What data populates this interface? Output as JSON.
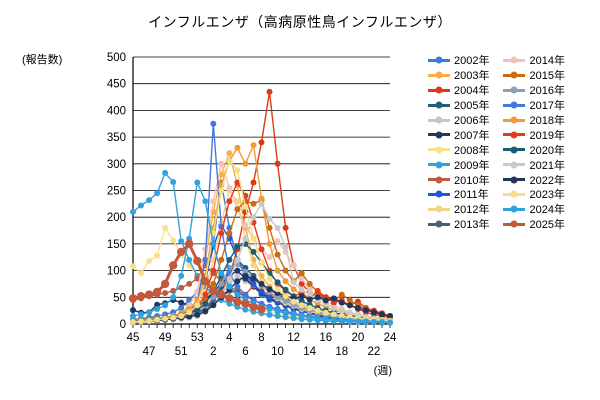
{
  "chart_data": {
    "type": "line",
    "title": "インフルエンザ（高病原性鳥インフルエンザ）",
    "ylabel": "(報告数)",
    "xlabel": "(週)",
    "ylim": [
      0,
      500
    ],
    "ytick_step": 50,
    "grid": true,
    "legend_position": "right",
    "x_weeks": [
      45,
      46,
      47,
      48,
      49,
      50,
      51,
      52,
      53,
      1,
      2,
      3,
      4,
      5,
      6,
      7,
      8,
      9,
      10,
      11,
      12,
      13,
      14,
      15,
      16,
      17,
      18,
      19,
      20,
      21,
      22,
      23,
      24
    ],
    "xtick_labels_top": [
      45,
      49,
      53,
      4,
      8,
      12,
      16,
      20,
      24
    ],
    "xtick_labels_bottom": [
      47,
      51,
      2,
      6,
      10,
      14,
      18,
      22
    ],
    "series": [
      {
        "name": "2002年",
        "color": "#3B7DD8",
        "values": [
          8,
          10,
          12,
          15,
          18,
          22,
          30,
          45,
          60,
          90,
          150,
          265,
          180,
          120,
          90,
          70,
          55,
          45,
          40,
          35,
          30,
          25,
          20,
          15,
          12,
          10,
          8,
          6,
          5,
          5,
          4,
          3,
          3
        ]
      },
      {
        "name": "2003年",
        "color": "#F8AE4A",
        "values": [
          5,
          6,
          8,
          10,
          12,
          15,
          20,
          30,
          45,
          120,
          210,
          280,
          320,
          260,
          180,
          120,
          90,
          70,
          55,
          45,
          38,
          32,
          28,
          24,
          20,
          17,
          14,
          12,
          10,
          8,
          7,
          6,
          5
        ]
      },
      {
        "name": "2004年",
        "color": "#DC3A14",
        "values": [
          3,
          4,
          5,
          6,
          8,
          10,
          12,
          15,
          20,
          30,
          45,
          60,
          90,
          140,
          210,
          265,
          340,
          435,
          300,
          180,
          110,
          75,
          60,
          55,
          50,
          45,
          40,
          35,
          42,
          30,
          25,
          20,
          15
        ]
      },
      {
        "name": "2005年",
        "color": "#20607C",
        "values": [
          5,
          6,
          7,
          8,
          10,
          12,
          14,
          17,
          20,
          28,
          45,
          70,
          95,
          120,
          105,
          90,
          75,
          65,
          55,
          48,
          42,
          36,
          30,
          26,
          22,
          19,
          16,
          14,
          12,
          10,
          9,
          8,
          7
        ]
      },
      {
        "name": "2006年",
        "color": "#C6C6C6",
        "values": [
          6,
          7,
          8,
          9,
          10,
          12,
          14,
          16,
          18,
          24,
          35,
          55,
          75,
          90,
          80,
          70,
          60,
          50,
          42,
          36,
          30,
          25,
          21,
          18,
          15,
          13,
          11,
          9,
          8,
          7,
          6,
          5,
          4
        ]
      },
      {
        "name": "2007年",
        "color": "#1F3864",
        "values": [
          26,
          21,
          22,
          36,
          39,
          45,
          40,
          35,
          30,
          45,
          60,
          75,
          90,
          100,
          85,
          70,
          58,
          48,
          40,
          34,
          28,
          24,
          20,
          17,
          14,
          12,
          10,
          9,
          8,
          7,
          6,
          5,
          4
        ]
      },
      {
        "name": "2008年",
        "color": "#FAE08C",
        "values": [
          108,
          95,
          118,
          128,
          180,
          157,
          130,
          110,
          90,
          75,
          65,
          55,
          48,
          42,
          36,
          30,
          26,
          22,
          19,
          16,
          14,
          12,
          10,
          9,
          8,
          7,
          6,
          5,
          4,
          4,
          3,
          3,
          2
        ]
      },
      {
        "name": "2009年",
        "color": "#33A2DC",
        "values": [
          210,
          222,
          232,
          245,
          283,
          266,
          155,
          120,
          90,
          70,
          55,
          45,
          38,
          32,
          27,
          23,
          20,
          17,
          15,
          13,
          11,
          9,
          8,
          7,
          6,
          5,
          5,
          4,
          4,
          3,
          3,
          2,
          2
        ]
      },
      {
        "name": "2010年",
        "color": "#BF5B41",
        "values": [
          45,
          48,
          52,
          55,
          58,
          62,
          68,
          75,
          85,
          110,
          95,
          80,
          70,
          62,
          55,
          72,
          62,
          55,
          48,
          42,
          36,
          30,
          26,
          22,
          19,
          16,
          14,
          12,
          10,
          9,
          8,
          7,
          6
        ]
      },
      {
        "name": "2011年",
        "color": "#2158D8",
        "values": [
          6,
          7,
          8,
          10,
          12,
          14,
          18,
          24,
          35,
          80,
          145,
          185,
          160,
          120,
          95,
          75,
          60,
          50,
          42,
          35,
          30,
          25,
          21,
          18,
          15,
          13,
          11,
          9,
          8,
          7,
          6,
          5,
          4
        ]
      },
      {
        "name": "2012年",
        "color": "#F5D488",
        "values": [
          4,
          5,
          6,
          8,
          10,
          12,
          15,
          20,
          30,
          60,
          120,
          190,
          250,
          230,
          160,
          110,
          80,
          60,
          48,
          40,
          34,
          28,
          24,
          20,
          17,
          14,
          12,
          10,
          8,
          7,
          6,
          5,
          4
        ]
      },
      {
        "name": "2013年",
        "color": "#4D5E77",
        "values": [
          8,
          9,
          10,
          11,
          12,
          14,
          16,
          18,
          21,
          28,
          38,
          50,
          62,
          58,
          52,
          45,
          38,
          32,
          27,
          23,
          19,
          16,
          14,
          12,
          10,
          9,
          8,
          7,
          6,
          5,
          4,
          4,
          3
        ]
      },
      {
        "name": "2014年",
        "color": "#F2C3B4",
        "values": [
          5,
          6,
          8,
          10,
          12,
          15,
          20,
          35,
          60,
          140,
          230,
          300,
          255,
          215,
          185,
          160,
          140,
          125,
          155,
          135,
          110,
          85,
          65,
          50,
          42,
          35,
          28,
          22,
          18,
          15,
          12,
          10,
          8
        ]
      },
      {
        "name": "2015年",
        "color": "#CB6C15",
        "values": [
          4,
          5,
          6,
          8,
          10,
          12,
          15,
          20,
          28,
          45,
          75,
          120,
          170,
          215,
          230,
          225,
          232,
          180,
          130,
          100,
          80,
          95,
          75,
          60,
          50,
          42,
          55,
          45,
          35,
          28,
          22,
          18,
          15
        ]
      },
      {
        "name": "2016年",
        "color": "#8D9DB8",
        "values": [
          7,
          8,
          9,
          10,
          12,
          14,
          16,
          19,
          23,
          32,
          50,
          75,
          105,
          112,
          98,
          85,
          72,
          60,
          50,
          43,
          36,
          30,
          26,
          22,
          18,
          15,
          13,
          11,
          9,
          8,
          7,
          6,
          5
        ]
      },
      {
        "name": "2017年",
        "color": "#4478E0",
        "values": [
          4,
          5,
          6,
          8,
          10,
          12,
          18,
          25,
          40,
          120,
          375,
          182,
          95,
          70,
          55,
          45,
          38,
          32,
          28,
          24,
          20,
          17,
          14,
          12,
          10,
          9,
          8,
          7,
          6,
          5,
          4,
          4,
          3
        ]
      },
      {
        "name": "2018年",
        "color": "#F19A37",
        "values": [
          5,
          6,
          8,
          10,
          12,
          15,
          20,
          28,
          40,
          90,
          180,
          260,
          305,
          330,
          300,
          335,
          235,
          150,
          100,
          80,
          65,
          55,
          45,
          38,
          32,
          26,
          22,
          18,
          15,
          12,
          10,
          8,
          7
        ]
      },
      {
        "name": "2019年",
        "color": "#E23B20",
        "values": [
          4,
          5,
          6,
          8,
          10,
          12,
          15,
          20,
          30,
          55,
          100,
          170,
          230,
          265,
          240,
          190,
          140,
          100,
          75,
          62,
          52,
          58,
          46,
          62,
          50,
          40,
          44,
          35,
          28,
          22,
          18,
          15,
          12
        ]
      },
      {
        "name": "2020年",
        "color": "#1B5E73",
        "values": [
          5,
          6,
          7,
          9,
          11,
          13,
          16,
          20,
          26,
          38,
          60,
          90,
          120,
          145,
          150,
          135,
          115,
          95,
          78,
          64,
          52,
          43,
          36,
          30,
          25,
          21,
          18,
          15,
          13,
          11,
          9,
          8,
          7
        ]
      },
      {
        "name": "2021年",
        "color": "#C9C9C9",
        "values": [
          3,
          4,
          5,
          6,
          8,
          9,
          10,
          12,
          15,
          22,
          35,
          55,
          85,
          120,
          160,
          200,
          225,
          197,
          180,
          145,
          78,
          64,
          55,
          45,
          38,
          30,
          25,
          20,
          16,
          13,
          10,
          8,
          7
        ]
      },
      {
        "name": "2022年",
        "color": "#20365C",
        "values": [
          4,
          5,
          6,
          7,
          8,
          10,
          12,
          14,
          17,
          24,
          35,
          50,
          65,
          80,
          90,
          85,
          75,
          65,
          58,
          52,
          48,
          52,
          46,
          50,
          44,
          48,
          40,
          35,
          30,
          26,
          22,
          18,
          15
        ]
      },
      {
        "name": "2023年",
        "color": "#F6DE85",
        "values": [
          4,
          5,
          6,
          8,
          10,
          12,
          15,
          22,
          35,
          80,
          170,
          250,
          305,
          288,
          220,
          160,
          115,
          85,
          65,
          52,
          42,
          35,
          30,
          25,
          21,
          18,
          15,
          13,
          11,
          9,
          8,
          7,
          6
        ]
      },
      {
        "name": "2024年",
        "color": "#2FA3DE",
        "values": [
          15,
          18,
          22,
          28,
          35,
          50,
          90,
          160,
          265,
          230,
          150,
          95,
          70,
          55,
          45,
          38,
          32,
          28,
          24,
          20,
          18,
          15,
          12,
          10,
          9,
          8,
          7,
          6,
          5,
          5,
          4,
          4,
          3
        ]
      },
      {
        "name": "2025年",
        "color": "#C2593C",
        "thick": true,
        "values": [
          48,
          52,
          55,
          60,
          75,
          110,
          135,
          150,
          118,
          80,
          62,
          55,
          48,
          42,
          38,
          32,
          28,
          null,
          null,
          null,
          null,
          null,
          null,
          null,
          null,
          null,
          null,
          null,
          null,
          null,
          null,
          null,
          null
        ]
      }
    ]
  }
}
